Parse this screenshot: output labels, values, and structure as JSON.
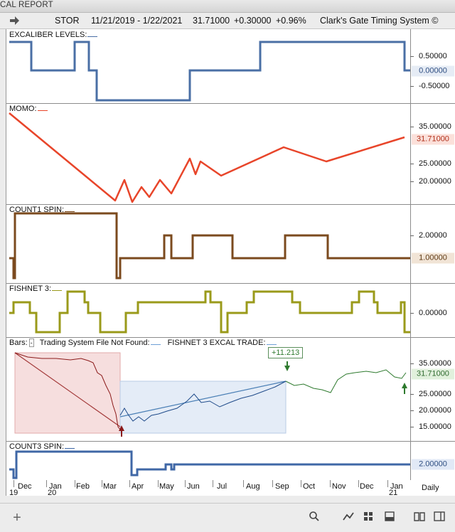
{
  "window": {
    "title": "CAL REPORT"
  },
  "info": {
    "symbol": "STOR",
    "range": "11/21/2019 - 1/22/2021",
    "last": "31.71000",
    "change": "+0.30000",
    "pct": "+0.96%",
    "system": "Clark's Gate Timing System ©"
  },
  "panes": {
    "excal": {
      "label": "EXCALIBER LEVELS:",
      "ticks": [
        "0.50000",
        "-0.50000"
      ],
      "value": "0.00000",
      "color": "#4a6fa5"
    },
    "momo": {
      "label": "MOMO:",
      "ticks": [
        "35.00000",
        "25.00000",
        "20.00000"
      ],
      "value": "31.71000",
      "color": "#e8452a"
    },
    "count1": {
      "label": "COUNT1 SPIN:",
      "ticks": [
        "2.00000"
      ],
      "value": "1.00000",
      "color": "#7b4a1e"
    },
    "fishnet": {
      "label": "FISHNET 3:",
      "ticks": [
        "0.00000"
      ],
      "value": "0.00000",
      "color": "#9a9a1a"
    },
    "bars": {
      "label1": "Bars:",
      "label1b": "-",
      "label2": "Trading System File Not Found:",
      "label3": "FISHNET 3 EXCAL TRADE:",
      "ticks": [
        "35.00000",
        "25.00000",
        "20.00000",
        "15.00000"
      ],
      "value": "31.71000",
      "gain": "+11.213"
    },
    "count3": {
      "label": "COUNT3 SPIN:",
      "ticks": [],
      "value": "2.00000",
      "color": "#3f67a6"
    }
  },
  "xaxis": {
    "months": [
      "Dec",
      "Jan",
      "Feb",
      "Mar",
      "Apr",
      "May",
      "Jun",
      "Jul",
      "Aug",
      "Sep",
      "Oct",
      "Nov",
      "Dec",
      "Jan"
    ],
    "years": [
      "19",
      "20",
      "21"
    ],
    "interval": "Daily"
  },
  "toolbar": {
    "add": "+"
  }
}
